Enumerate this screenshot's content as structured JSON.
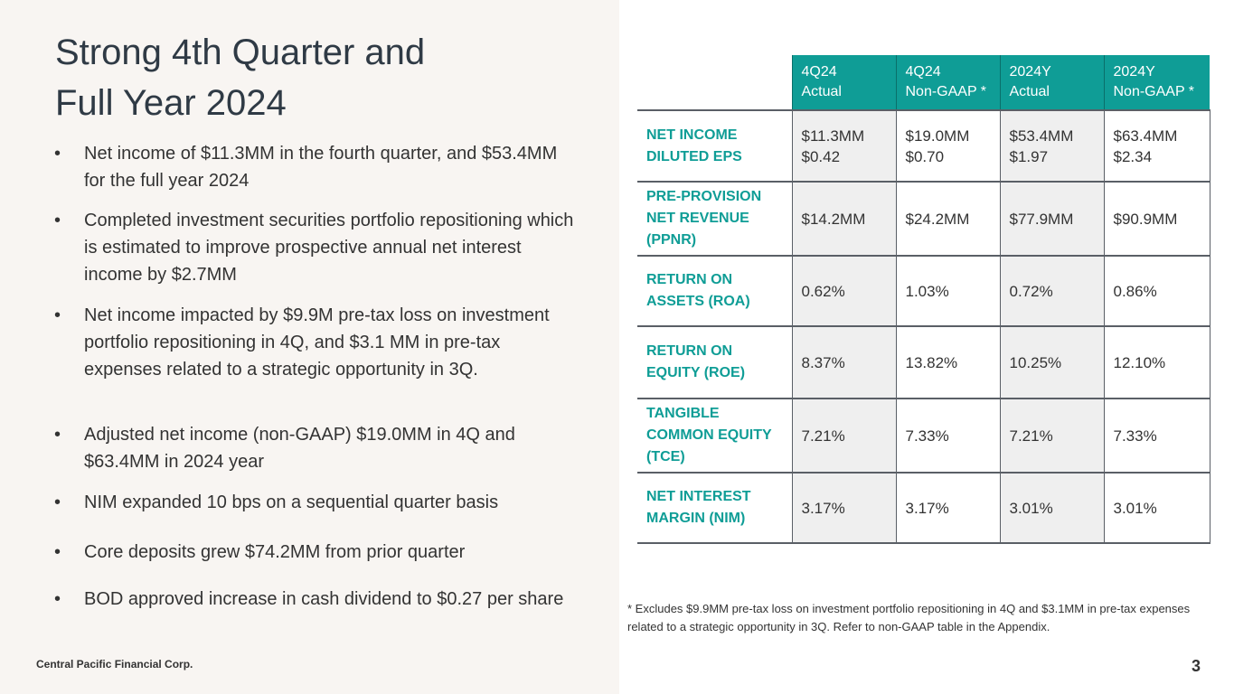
{
  "slide": {
    "title_line1": "Strong 4th Quarter and",
    "title_line2": "Full Year 2024",
    "bullets": [
      "Net income of $11.3MM in the fourth quarter, and $53.4MM for the full year 2024",
      "Completed investment securities portfolio repositioning which is estimated to improve prospective annual net interest income by $2.7MM",
      "Net income impacted by $9.9M pre-tax loss on investment portfolio repositioning in 4Q, and $3.1 MM in pre-tax expenses related to a strategic opportunity in 3Q.",
      "Adjusted net income (non-GAAP) $19.0MM in 4Q and $63.4MM in 2024 year",
      "NIM expanded 10 bps on a sequential quarter basis",
      "Core deposits grew $74.2MM from prior quarter",
      "BOD approved increase in cash dividend to $0.27 per share"
    ],
    "bullet_symbol": "•",
    "company": "Central Pacific Financial Corp.",
    "page_number": "3",
    "footnote": "* Excludes $9.9MM pre-tax loss on investment portfolio repositioning in 4Q and $3.1MM in pre-tax expenses related to a strategic opportunity in 3Q. Refer to non-GAAP table in the Appendix."
  },
  "table": {
    "columns": [
      {
        "line1": "4Q24",
        "line2": "Actual"
      },
      {
        "line1": "4Q24",
        "line2": "Non-GAAP *"
      },
      {
        "line1": "2024Y",
        "line2": "Actual"
      },
      {
        "line1": "2024Y",
        "line2": "Non-GAAP *"
      }
    ],
    "rows": [
      {
        "label": [
          "NET INCOME",
          "DILUTED EPS"
        ],
        "values": [
          [
            "$11.3MM",
            "$0.42"
          ],
          [
            "$19.0MM",
            "$0.70"
          ],
          [
            "$53.4MM",
            "$1.97"
          ],
          [
            "$63.4MM",
            "$2.34"
          ]
        ]
      },
      {
        "label": [
          "PRE-PROVISION",
          "NET REVENUE",
          "(PPNR)"
        ],
        "values": [
          [
            "$14.2MM"
          ],
          [
            "$24.2MM"
          ],
          [
            "$77.9MM"
          ],
          [
            "$90.9MM"
          ]
        ]
      },
      {
        "label": [
          "RETURN ON",
          "ASSETS (ROA)"
        ],
        "values": [
          [
            "0.62%"
          ],
          [
            "1.03%"
          ],
          [
            "0.72%"
          ],
          [
            "0.86%"
          ]
        ]
      },
      {
        "label": [
          "RETURN ON",
          "EQUITY (ROE)"
        ],
        "values": [
          [
            "8.37%"
          ],
          [
            "13.82%"
          ],
          [
            "10.25%"
          ],
          [
            "12.10%"
          ]
        ]
      },
      {
        "label": [
          "TANGIBLE",
          "COMMON EQUITY",
          "(TCE)"
        ],
        "values": [
          [
            "7.21%"
          ],
          [
            "7.33%"
          ],
          [
            "7.21%"
          ],
          [
            "7.33%"
          ]
        ]
      },
      {
        "label": [
          "NET INTEREST",
          "MARGIN (NIM)"
        ],
        "values": [
          [
            "3.17%"
          ],
          [
            "3.17%"
          ],
          [
            "3.01%"
          ],
          [
            "3.01%"
          ]
        ]
      }
    ],
    "colors": {
      "header_bg": "#0f9d96",
      "label_text": "#0f9d96",
      "shade": "#efefef",
      "border": "#5a5f66"
    }
  }
}
